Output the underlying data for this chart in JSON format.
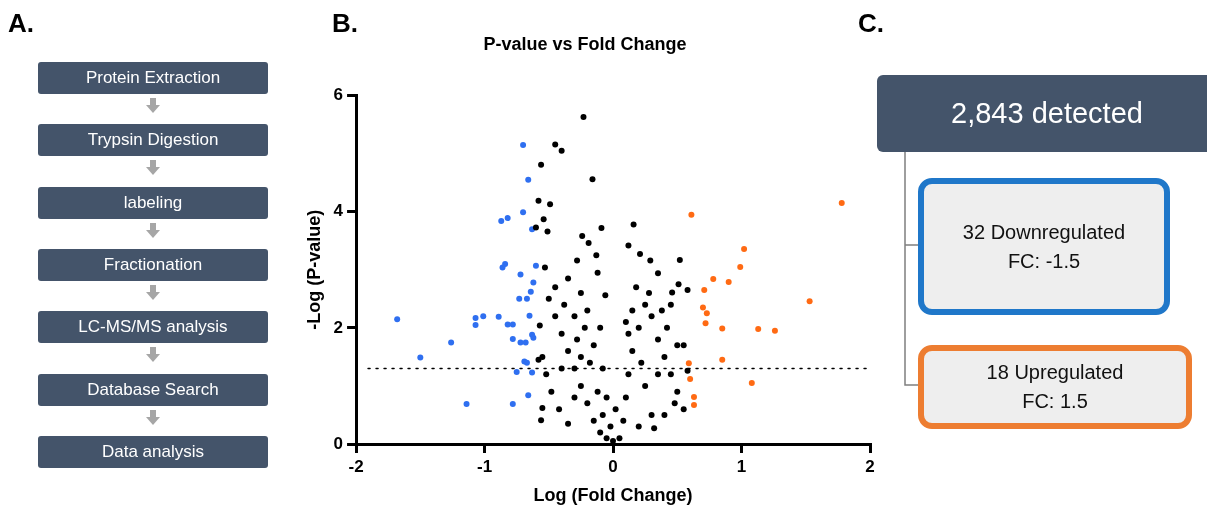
{
  "chart_data": [
    {
      "type": "other",
      "annotations": [
        "A.",
        "Protein Extraction",
        "Trypsin Digestion",
        "labeling",
        "Fractionation",
        "LC-MS/MS analysis",
        "Database Search",
        "Data analysis"
      ]
    },
    {
      "type": "scatter",
      "title": "P-value vs Fold Change",
      "xlabel": "Log (Fold Change)",
      "ylabel": "-Log (P-value)",
      "annotations": [
        "B."
      ],
      "xlim": [
        -2,
        2
      ],
      "xticks": [
        -2,
        -1,
        0,
        1,
        2
      ],
      "ylim": [
        0,
        6
      ],
      "yticks": [
        0,
        2,
        4,
        6
      ],
      "grid": false,
      "legend": false,
      "marker": "circle",
      "ref_lines": [
        {
          "axis": "y",
          "value": 1.3,
          "color": "#000000",
          "line_style": "dotted"
        }
      ],
      "series": [
        {
          "color": "#000000",
          "x": [
            -0.23,
            -0.45,
            -0.4,
            -0.56,
            -0.16,
            -0.58,
            -0.49,
            -0.54,
            -0.6,
            -0.51,
            -0.09,
            -0.24,
            -0.19,
            -0.13,
            -0.28,
            -0.53,
            -0.12,
            -0.06,
            -0.56,
            -0.57,
            -0.05,
            -0.1,
            -0.08,
            -0.15,
            -0.2,
            -0.12,
            -0.25,
            -0.3,
            -0.18,
            -0.35,
            -0.4,
            -0.28,
            -0.45,
            -0.5,
            -0.38,
            -0.3,
            -0.22,
            -0.15,
            -0.55,
            -0.52,
            -0.48,
            -0.42,
            -0.35,
            -0.55,
            -0.58,
            -0.45,
            -0.35,
            -0.25,
            -0.2,
            -0.1,
            -0.08,
            -0.05,
            -0.02,
            -0.3,
            -0.4,
            -0.25,
            0.16,
            0.12,
            0.21,
            0.29,
            0.52,
            0.35,
            0.51,
            0.58,
            0.55,
            0.58,
            0.32,
            0.46,
            0.05,
            0.08,
            0.1,
            0.12,
            0.15,
            0.2,
            0.25,
            0.3,
            0.35,
            0.4,
            0.45,
            0.5,
            0.55,
            0.3,
            0.2,
            0.15,
            0.18,
            0.28,
            0.38,
            0.42,
            0.5,
            0.48,
            0.4,
            0.25,
            0.35,
            0.22,
            0.1,
            0.45,
            0.02,
            0.12,
            0.0
          ],
          "values": [
            5.63,
            5.16,
            5.05,
            4.81,
            4.56,
            4.19,
            4.13,
            3.87,
            3.73,
            3.66,
            3.72,
            3.58,
            3.46,
            3.25,
            3.16,
            3.04,
            2.95,
            2.56,
            0.41,
            2.04,
            0.1,
            0.2,
            0.5,
            0.4,
            0.7,
            0.9,
            1.0,
            1.3,
            1.4,
            1.6,
            1.9,
            1.8,
            2.2,
            2.5,
            2.4,
            2.2,
            2.0,
            1.7,
            1.5,
            1.2,
            0.9,
            0.6,
            0.35,
            0.62,
            1.45,
            2.7,
            2.85,
            2.6,
            2.3,
            2.0,
            1.3,
            0.8,
            0.3,
            0.8,
            1.3,
            1.5,
            3.78,
            3.42,
            3.27,
            3.16,
            3.17,
            2.94,
            2.75,
            2.65,
            1.7,
            1.26,
            0.27,
            2.61,
            0.1,
            0.4,
            0.8,
            1.2,
            1.6,
            2.0,
            2.4,
            2.2,
            1.8,
            1.5,
            1.2,
            0.9,
            0.6,
            0.5,
            0.3,
            2.3,
            2.7,
            2.6,
            2.3,
            2.0,
            1.7,
            0.7,
            0.5,
            1.0,
            1.2,
            1.4,
            2.1,
            2.4,
            0.6,
            1.9,
            0.05
          ]
        },
        {
          "color": "#2f6ff0",
          "x": [
            -1.68,
            -1.5,
            -1.26,
            -1.14,
            -1.07,
            -1.07,
            -1.01,
            -0.89,
            -0.87,
            -0.82,
            -0.86,
            -0.84,
            -0.82,
            -0.78,
            -0.78,
            -0.75,
            -0.78,
            -0.73,
            -0.72,
            -0.7,
            -0.7,
            -0.72,
            -0.68,
            -0.69,
            -0.67,
            -0.67,
            -0.66,
            -0.65,
            -0.66,
            -0.64,
            -0.62,
            -0.63,
            -0.63,
            -0.62,
            -0.63,
            -0.6
          ],
          "values": [
            2.15,
            1.49,
            1.75,
            0.69,
            2.17,
            2.05,
            2.2,
            2.19,
            3.84,
            3.89,
            3.04,
            3.1,
            2.06,
            2.06,
            1.81,
            1.24,
            0.69,
            2.5,
            2.92,
            5.15,
            3.99,
            1.75,
            1.75,
            1.42,
            1.4,
            2.5,
            4.55,
            2.21,
            0.84,
            2.62,
            2.78,
            3.7,
            1.88,
            1.83,
            1.23,
            3.07
          ]
        },
        {
          "color": "#ff6a13",
          "x": [
            0.61,
            1.78,
            1.02,
            0.99,
            0.78,
            0.9,
            0.71,
            1.53,
            0.7,
            0.73,
            0.72,
            0.85,
            1.13,
            1.26,
            0.85,
            0.59,
            0.6,
            1.08,
            0.63,
            0.63
          ],
          "values": [
            3.95,
            4.15,
            3.36,
            3.05,
            2.84,
            2.79,
            2.65,
            2.46,
            2.35,
            2.25,
            2.08,
            1.99,
            1.98,
            1.95,
            1.45,
            1.39,
            1.12,
            1.05,
            0.81,
            0.67
          ]
        }
      ]
    },
    {
      "type": "other",
      "annotations": [
        "C.",
        "2,843 detected",
        "32 Downregulated",
        "FC: -1.5",
        "18 Upregulated",
        "FC: 1.5"
      ]
    }
  ]
}
